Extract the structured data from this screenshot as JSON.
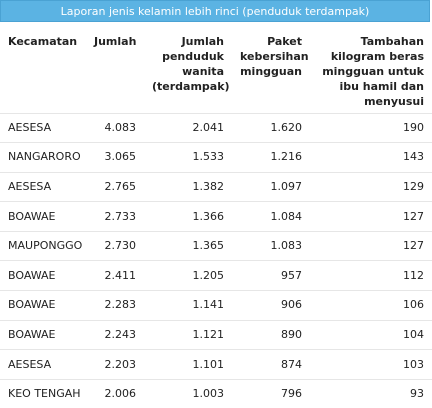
{
  "title": "Laporan jenis kelamin lebih rinci (penduduk terdampak)",
  "columns": [
    "Kecamatan",
    "Jumlah",
    "Jumlah penduduk wanita (terdampak)",
    "Paket kebersihan mingguan",
    "Tambahan kilogram beras mingguan untuk ibu hamil dan menyusui"
  ],
  "rows": [
    [
      "AESESA",
      "4.083",
      "2.041",
      "1.620",
      "190"
    ],
    [
      "NANGARORO",
      "3.065",
      "1.533",
      "1.216",
      "143"
    ],
    [
      "AESESA",
      "2.765",
      "1.382",
      "1.097",
      "129"
    ],
    [
      "BOAWAE",
      "2.733",
      "1.366",
      "1.084",
      "127"
    ],
    [
      "MAUPONGGO",
      "2.730",
      "1.365",
      "1.083",
      "127"
    ],
    [
      "BOAWAE",
      "2.411",
      "1.205",
      "957",
      "112"
    ],
    [
      "BOAWAE",
      "2.283",
      "1.141",
      "906",
      "106"
    ],
    [
      "BOAWAE",
      "2.243",
      "1.121",
      "890",
      "104"
    ],
    [
      "AESESA",
      "2.203",
      "1.101",
      "874",
      "103"
    ],
    [
      "KEO TENGAH",
      "2.006",
      "1.003",
      "796",
      "93"
    ]
  ]
}
